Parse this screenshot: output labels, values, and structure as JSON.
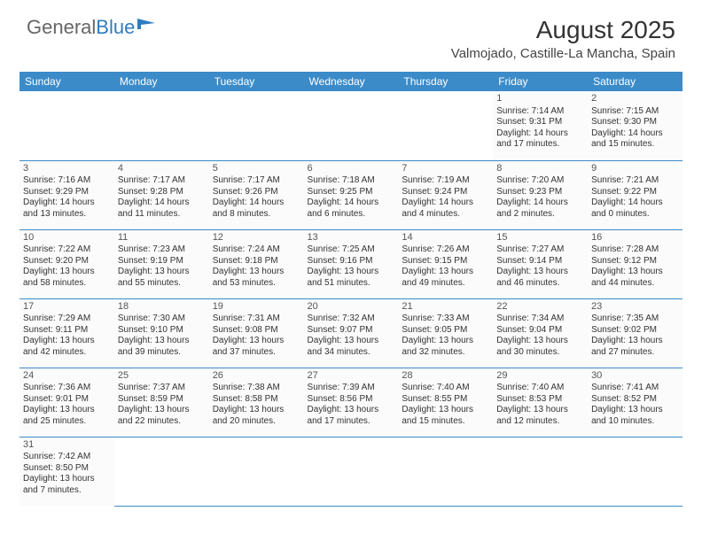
{
  "logo": {
    "textA": "General",
    "textB": "Blue"
  },
  "title": "August 2025",
  "location": "Valmojado, Castille-La Mancha, Spain",
  "colors": {
    "header_bg": "#3b8bc9",
    "header_text": "#ffffff",
    "cell_border": "#3b8bc9",
    "cell_bg": "#fbfbfb",
    "text": "#333333",
    "logo_gray": "#666666",
    "logo_blue": "#2e7cc0"
  },
  "weekdays": [
    "Sunday",
    "Monday",
    "Tuesday",
    "Wednesday",
    "Thursday",
    "Friday",
    "Saturday"
  ],
  "weeks": [
    [
      null,
      null,
      null,
      null,
      null,
      {
        "d": "1",
        "sr": "7:14 AM",
        "ss": "9:31 PM",
        "dl": "14 hours and 17 minutes."
      },
      {
        "d": "2",
        "sr": "7:15 AM",
        "ss": "9:30 PM",
        "dl": "14 hours and 15 minutes."
      }
    ],
    [
      {
        "d": "3",
        "sr": "7:16 AM",
        "ss": "9:29 PM",
        "dl": "14 hours and 13 minutes."
      },
      {
        "d": "4",
        "sr": "7:17 AM",
        "ss": "9:28 PM",
        "dl": "14 hours and 11 minutes."
      },
      {
        "d": "5",
        "sr": "7:17 AM",
        "ss": "9:26 PM",
        "dl": "14 hours and 8 minutes."
      },
      {
        "d": "6",
        "sr": "7:18 AM",
        "ss": "9:25 PM",
        "dl": "14 hours and 6 minutes."
      },
      {
        "d": "7",
        "sr": "7:19 AM",
        "ss": "9:24 PM",
        "dl": "14 hours and 4 minutes."
      },
      {
        "d": "8",
        "sr": "7:20 AM",
        "ss": "9:23 PM",
        "dl": "14 hours and 2 minutes."
      },
      {
        "d": "9",
        "sr": "7:21 AM",
        "ss": "9:22 PM",
        "dl": "14 hours and 0 minutes."
      }
    ],
    [
      {
        "d": "10",
        "sr": "7:22 AM",
        "ss": "9:20 PM",
        "dl": "13 hours and 58 minutes."
      },
      {
        "d": "11",
        "sr": "7:23 AM",
        "ss": "9:19 PM",
        "dl": "13 hours and 55 minutes."
      },
      {
        "d": "12",
        "sr": "7:24 AM",
        "ss": "9:18 PM",
        "dl": "13 hours and 53 minutes."
      },
      {
        "d": "13",
        "sr": "7:25 AM",
        "ss": "9:16 PM",
        "dl": "13 hours and 51 minutes."
      },
      {
        "d": "14",
        "sr": "7:26 AM",
        "ss": "9:15 PM",
        "dl": "13 hours and 49 minutes."
      },
      {
        "d": "15",
        "sr": "7:27 AM",
        "ss": "9:14 PM",
        "dl": "13 hours and 46 minutes."
      },
      {
        "d": "16",
        "sr": "7:28 AM",
        "ss": "9:12 PM",
        "dl": "13 hours and 44 minutes."
      }
    ],
    [
      {
        "d": "17",
        "sr": "7:29 AM",
        "ss": "9:11 PM",
        "dl": "13 hours and 42 minutes."
      },
      {
        "d": "18",
        "sr": "7:30 AM",
        "ss": "9:10 PM",
        "dl": "13 hours and 39 minutes."
      },
      {
        "d": "19",
        "sr": "7:31 AM",
        "ss": "9:08 PM",
        "dl": "13 hours and 37 minutes."
      },
      {
        "d": "20",
        "sr": "7:32 AM",
        "ss": "9:07 PM",
        "dl": "13 hours and 34 minutes."
      },
      {
        "d": "21",
        "sr": "7:33 AM",
        "ss": "9:05 PM",
        "dl": "13 hours and 32 minutes."
      },
      {
        "d": "22",
        "sr": "7:34 AM",
        "ss": "9:04 PM",
        "dl": "13 hours and 30 minutes."
      },
      {
        "d": "23",
        "sr": "7:35 AM",
        "ss": "9:02 PM",
        "dl": "13 hours and 27 minutes."
      }
    ],
    [
      {
        "d": "24",
        "sr": "7:36 AM",
        "ss": "9:01 PM",
        "dl": "13 hours and 25 minutes."
      },
      {
        "d": "25",
        "sr": "7:37 AM",
        "ss": "8:59 PM",
        "dl": "13 hours and 22 minutes."
      },
      {
        "d": "26",
        "sr": "7:38 AM",
        "ss": "8:58 PM",
        "dl": "13 hours and 20 minutes."
      },
      {
        "d": "27",
        "sr": "7:39 AM",
        "ss": "8:56 PM",
        "dl": "13 hours and 17 minutes."
      },
      {
        "d": "28",
        "sr": "7:40 AM",
        "ss": "8:55 PM",
        "dl": "13 hours and 15 minutes."
      },
      {
        "d": "29",
        "sr": "7:40 AM",
        "ss": "8:53 PM",
        "dl": "13 hours and 12 minutes."
      },
      {
        "d": "30",
        "sr": "7:41 AM",
        "ss": "8:52 PM",
        "dl": "13 hours and 10 minutes."
      }
    ],
    [
      {
        "d": "31",
        "sr": "7:42 AM",
        "ss": "8:50 PM",
        "dl": "13 hours and 7 minutes."
      },
      null,
      null,
      null,
      null,
      null,
      null
    ]
  ],
  "labels": {
    "sunrise": "Sunrise: ",
    "sunset": "Sunset: ",
    "daylight": "Daylight: "
  }
}
